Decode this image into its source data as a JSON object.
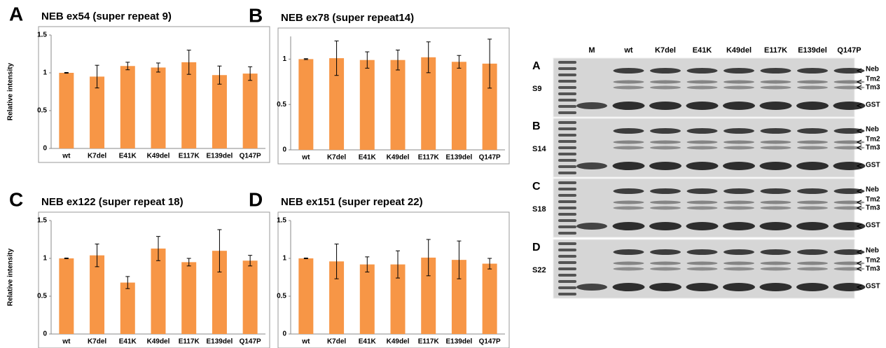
{
  "chart_data": [
    {
      "type": "bar",
      "panel": "A",
      "title": "NEB ex54 (super repeat 9)",
      "y_label": "Relative intensity",
      "categories": [
        "wt",
        "K7del",
        "E41K",
        "K49del",
        "E117K",
        "E139del",
        "Q147P"
      ],
      "series": [
        {
          "color": "#f79646",
          "values": [
            1.0,
            0.95,
            1.09,
            1.07,
            1.14,
            0.97,
            0.99
          ],
          "errors": [
            0.005,
            0.15,
            0.05,
            0.06,
            0.16,
            0.12,
            0.09
          ]
        }
      ],
      "ylim": [
        0,
        1.5
      ],
      "yticks": [
        0,
        0.5,
        1,
        1.5
      ]
    },
    {
      "type": "bar",
      "panel": "B",
      "title": "NEB ex78 (super repeat14)",
      "categories": [
        "wt",
        "K7del",
        "E41K",
        "K49del",
        "E117K",
        "E139del",
        "Q147P"
      ],
      "series": [
        {
          "color": "#f79646",
          "values": [
            1.0,
            1.01,
            0.99,
            0.99,
            1.02,
            0.97,
            0.95
          ],
          "errors": [
            0.005,
            0.19,
            0.09,
            0.11,
            0.17,
            0.07,
            0.27
          ]
        }
      ],
      "ylim": [
        0,
        1.25
      ],
      "yticks": [
        0,
        0.5,
        1
      ]
    },
    {
      "type": "bar",
      "panel": "C",
      "title": "NEB ex122 (super repeat 18)",
      "y_label": "Relative intensity",
      "categories": [
        "wt",
        "K7del",
        "E41K",
        "K49del",
        "E117K",
        "E139del",
        "Q147P"
      ],
      "series": [
        {
          "color": "#f79646",
          "values": [
            1.0,
            1.04,
            0.68,
            1.13,
            0.95,
            1.1,
            0.97
          ],
          "errors": [
            0.005,
            0.15,
            0.08,
            0.16,
            0.05,
            0.28,
            0.07
          ]
        }
      ],
      "ylim": [
        0,
        1.5
      ],
      "yticks": [
        0,
        0.5,
        1,
        1.5
      ]
    },
    {
      "type": "bar",
      "panel": "D",
      "title": "NEB ex151 (super repeat 22)",
      "categories": [
        "wt",
        "K7del",
        "E41K",
        "K49del",
        "E117K",
        "E139del",
        "Q147P"
      ],
      "series": [
        {
          "color": "#f79646",
          "values": [
            1.0,
            0.96,
            0.92,
            0.92,
            1.01,
            0.98,
            0.93
          ],
          "errors": [
            0.005,
            0.23,
            0.1,
            0.18,
            0.24,
            0.25,
            0.07
          ]
        }
      ],
      "ylim": [
        0,
        1.5
      ],
      "yticks": [
        0,
        0.5,
        1,
        1.5
      ]
    }
  ],
  "gel": {
    "lanes": [
      "M",
      "wt",
      "K7del",
      "E41K",
      "K49del",
      "E117K",
      "E139del",
      "Q147P"
    ],
    "panels": [
      {
        "letter": "A",
        "label": "S9",
        "bands": [
          "Neb",
          "Tm2",
          "Tm3",
          "GST"
        ]
      },
      {
        "letter": "B",
        "label": "S14",
        "bands": [
          "Neb",
          "Tm2",
          "Tm3",
          "GST"
        ]
      },
      {
        "letter": "C",
        "label": "S18",
        "bands": [
          "Neb",
          "Tm2",
          "Tm3",
          "GST"
        ]
      },
      {
        "letter": "D",
        "label": "S22",
        "bands": [
          "Neb",
          "Tm2",
          "Tm3",
          "GST"
        ]
      }
    ]
  }
}
